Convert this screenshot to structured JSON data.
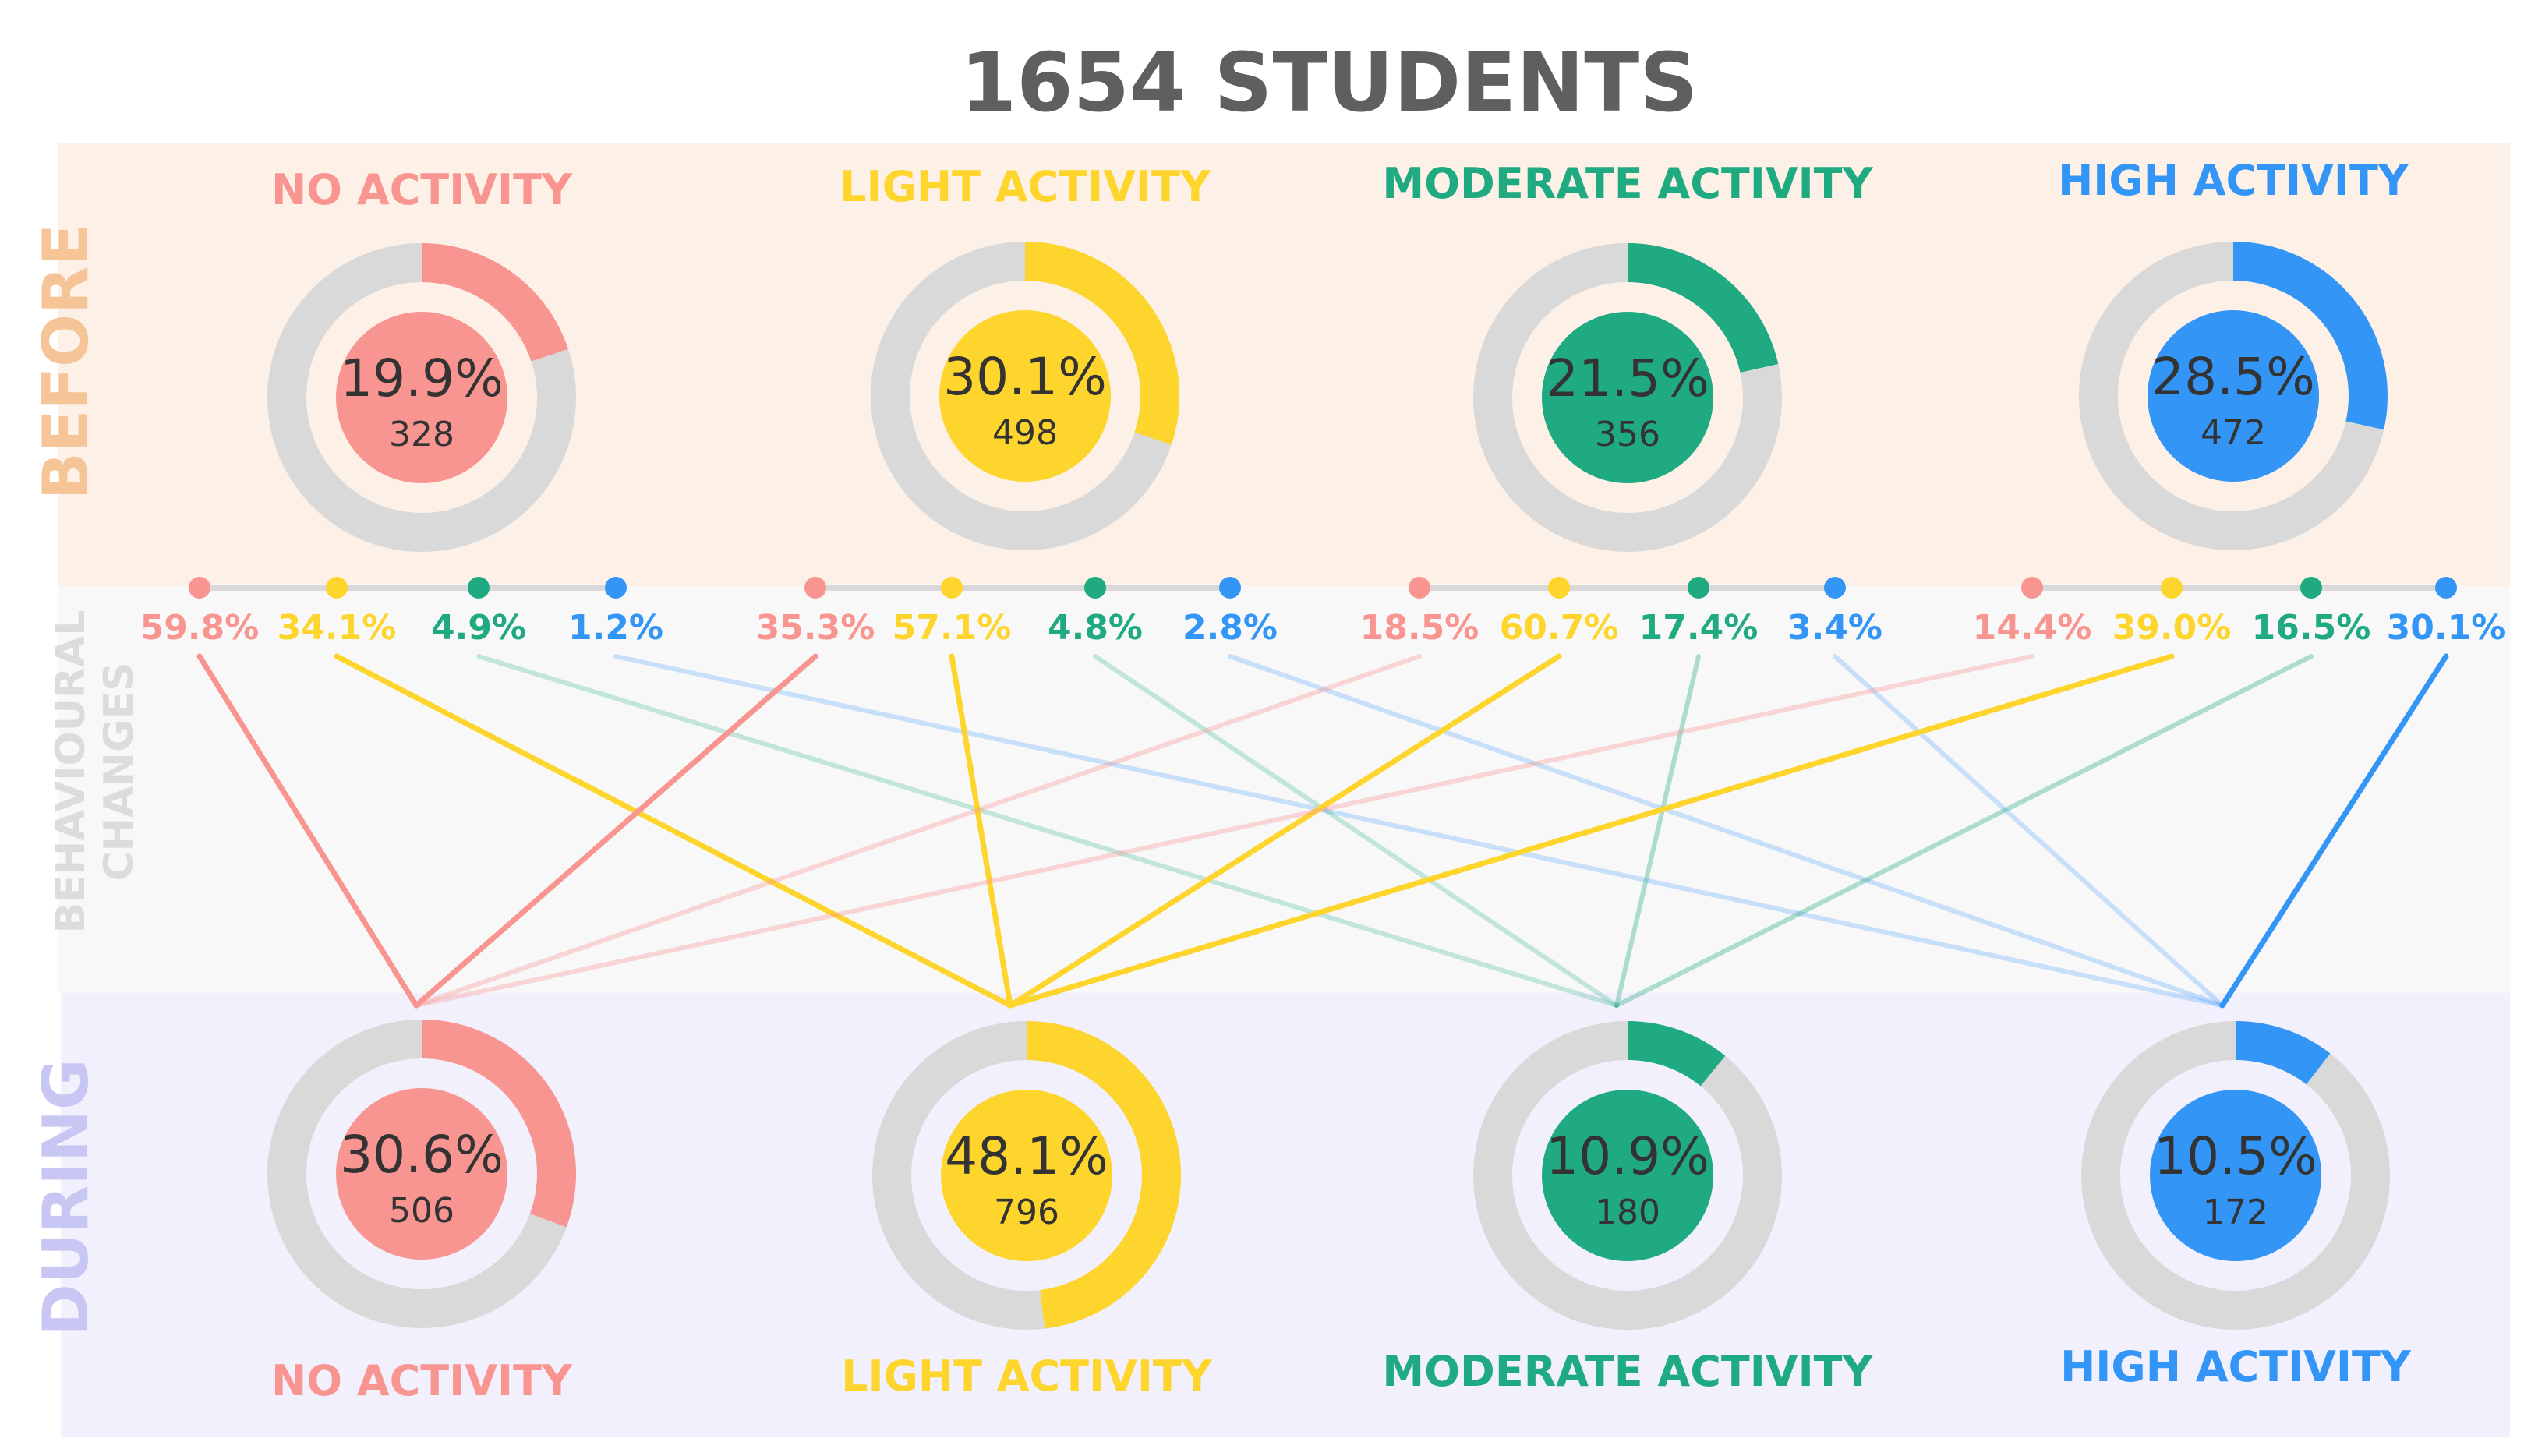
{
  "title": "1654 STUDENTS",
  "sections": {
    "before": "BEFORE",
    "changes_line1": "BEHAVIOURAL",
    "changes_line2": "CHANGES",
    "during": "DURING"
  },
  "colors": {
    "no": "#f99591",
    "light": "#fdd52d",
    "moderate": "#1faa82",
    "high": "#3395f6",
    "track": "#d9d9d9",
    "before_band": "#fdf1e7",
    "changes_band": "#f8f8f8",
    "during_band": "#f1f0fc",
    "title": "#5f5f5f",
    "before_label": "#f5c497",
    "changes_label": "#dcdcdc",
    "during_label": "#c8c6f2",
    "value_text": "#333333"
  },
  "before": [
    {
      "key": "no",
      "label": "NO ACTIVITY",
      "percent": "19.9%",
      "count": "328",
      "share": 0.199
    },
    {
      "key": "light",
      "label": "LIGHT ACTIVITY",
      "percent": "30.1%",
      "count": "498",
      "share": 0.301
    },
    {
      "key": "moderate",
      "label": "MODERATE ACTIVITY",
      "percent": "21.5%",
      "count": "356",
      "share": 0.215
    },
    {
      "key": "high",
      "label": "HIGH ACTIVITY",
      "percent": "28.5%",
      "count": "472",
      "share": 0.285
    }
  ],
  "during": [
    {
      "key": "no",
      "label": "NO ACTIVITY",
      "percent": "30.6%",
      "count": "506",
      "share": 0.306
    },
    {
      "key": "light",
      "label": "LIGHT ACTIVITY",
      "percent": "48.1%",
      "count": "796",
      "share": 0.481
    },
    {
      "key": "moderate",
      "label": "MODERATE ACTIVITY",
      "percent": "10.9%",
      "count": "180",
      "share": 0.109
    },
    {
      "key": "high",
      "label": "HIGH ACTIVITY",
      "percent": "10.5%",
      "count": "172",
      "share": 0.105
    }
  ],
  "transitions": [
    [
      "59.8%",
      "34.1%",
      "4.9%",
      "1.2%"
    ],
    [
      "35.3%",
      "57.1%",
      "4.8%",
      "2.8%"
    ],
    [
      "18.5%",
      "60.7%",
      "17.4%",
      "3.4%"
    ],
    [
      "14.4%",
      "39.0%",
      "16.5%",
      "30.1%"
    ]
  ],
  "transition_targets": [
    "no",
    "light",
    "moderate",
    "high"
  ]
}
